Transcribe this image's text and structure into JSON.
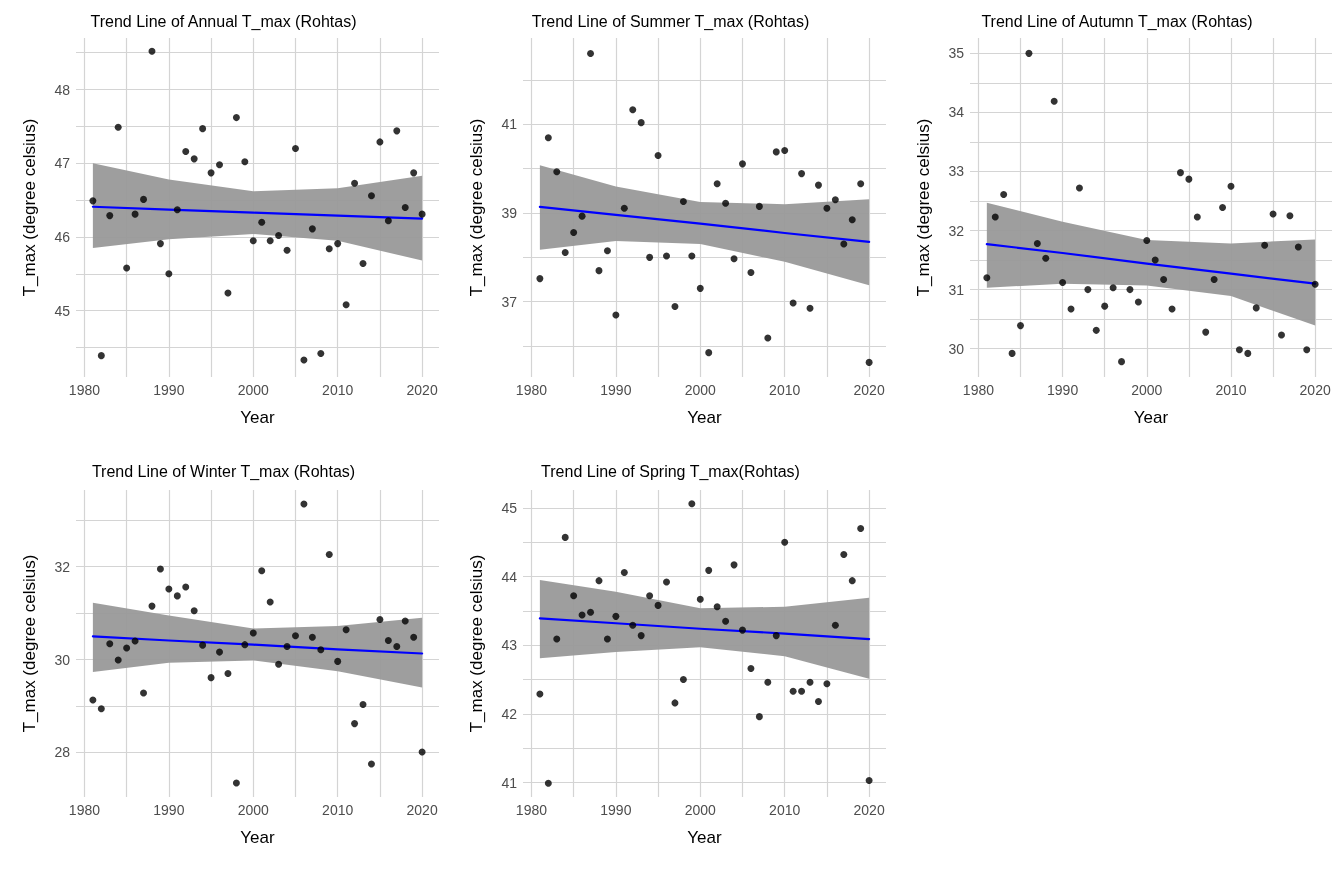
{
  "chart_data": [
    {
      "type": "scatter",
      "title": "Trend Line of Annual T_max (Rohtas)",
      "xlabel": "Year",
      "ylabel": "T_max (degree celsius)",
      "grid": true,
      "x": [
        1981,
        1982,
        1983,
        1984,
        1985,
        1986,
        1987,
        1988,
        1989,
        1990,
        1991,
        1992,
        1993,
        1994,
        1995,
        1996,
        1997,
        1998,
        1999,
        2000,
        2001,
        2002,
        2003,
        2004,
        2005,
        2006,
        2007,
        2008,
        2009,
        2010,
        2011,
        2012,
        2013,
        2014,
        2015,
        2016,
        2017,
        2018,
        2019,
        2020
      ],
      "xlim": [
        1979,
        2022
      ],
      "xticks": [
        1980,
        {
          "value": 1985,
          "label": null
        },
        1990,
        {
          "value": 1995,
          "label": null
        },
        2000,
        {
          "value": 2005,
          "label": null
        },
        2010,
        {
          "value": 2015,
          "label": null
        },
        2020
      ],
      "ylim": [
        44.1,
        48.7
      ],
      "yticks": [
        {
          "value": 44.5,
          "label": null
        },
        45,
        {
          "value": 45.5,
          "label": null
        },
        46,
        {
          "value": 46.5,
          "label": null
        },
        47,
        {
          "value": 47.5,
          "label": null
        },
        48,
        {
          "value": 48.5,
          "label": null
        }
      ],
      "series": [
        {
          "color": "#000000",
          "marker": "circle",
          "values": [
            46.49,
            44.39,
            46.29,
            47.49,
            45.58,
            46.31,
            46.51,
            48.52,
            45.91,
            45.5,
            46.37,
            47.16,
            47.06,
            47.47,
            46.87,
            46.98,
            45.24,
            47.62,
            47.02,
            45.95,
            46.2,
            45.95,
            46.02,
            45.82,
            47.2,
            44.33,
            46.11,
            44.42,
            45.84,
            45.91,
            45.08,
            46.73,
            45.64,
            46.56,
            47.29,
            46.22,
            47.44,
            46.4,
            46.87,
            46.31
          ]
        },
        {
          "type": "line",
          "color": "#0000ff",
          "marker": "none",
          "x": [
            1981,
            1990,
            2000,
            2010,
            2020
          ],
          "values": [
            46.41,
            46.37,
            46.33,
            46.29,
            46.25
          ],
          "lower": [
            45.85,
            45.97,
            46.04,
            45.95,
            45.68
          ],
          "upper": [
            47.0,
            46.78,
            46.62,
            46.66,
            46.83
          ]
        }
      ]
    },
    {
      "type": "scatter",
      "title": "Trend Line of Summer T_max (Rohtas)",
      "xlabel": "Year",
      "ylabel": "T_max (degree celsius)",
      "grid": true,
      "x": [
        1981,
        1982,
        1983,
        1984,
        1985,
        1986,
        1987,
        1988,
        1989,
        1990,
        1991,
        1992,
        1993,
        1994,
        1995,
        1996,
        1997,
        1998,
        1999,
        2000,
        2001,
        2002,
        2003,
        2004,
        2005,
        2006,
        2007,
        2008,
        2009,
        2010,
        2011,
        2012,
        2013,
        2014,
        2015,
        2016,
        2017,
        2018,
        2019,
        2020
      ],
      "xlim": [
        1979,
        2022
      ],
      "xticks": [
        1980,
        {
          "value": 1985,
          "label": null
        },
        1990,
        {
          "value": 1995,
          "label": null
        },
        2000,
        {
          "value": 2005,
          "label": null
        },
        2010,
        {
          "value": 2015,
          "label": null
        },
        2020
      ],
      "ylim": [
        35.3,
        42.95
      ],
      "yticks": [
        {
          "value": 36,
          "label": null
        },
        37,
        {
          "value": 38,
          "label": null
        },
        39,
        {
          "value": 40,
          "label": null
        },
        41,
        {
          "value": 42,
          "label": null
        }
      ],
      "series": [
        {
          "color": "#000000",
          "marker": "circle",
          "values": [
            37.52,
            40.7,
            39.93,
            38.11,
            38.56,
            38.93,
            42.6,
            37.7,
            38.15,
            36.7,
            39.11,
            41.33,
            41.04,
            38.0,
            40.3,
            38.03,
            36.89,
            39.26,
            38.03,
            37.3,
            35.85,
            39.66,
            39.22,
            37.97,
            40.11,
            37.66,
            39.15,
            36.18,
            40.38,
            40.41,
            36.97,
            39.89,
            36.85,
            39.63,
            39.11,
            39.3,
            38.3,
            38.85,
            39.66,
            35.63
          ]
        },
        {
          "type": "line",
          "color": "#0000ff",
          "marker": "none",
          "x": [
            1981,
            1990,
            2000,
            2010,
            2020
          ],
          "values": [
            39.14,
            38.96,
            38.76,
            38.55,
            38.35
          ],
          "lower": [
            38.17,
            38.37,
            38.3,
            37.9,
            37.37
          ],
          "upper": [
            40.08,
            39.6,
            39.25,
            39.2,
            39.31
          ]
        }
      ]
    },
    {
      "type": "scatter",
      "title": "Trend Line of Autumn T_max (Rohtas)",
      "xlabel": "Year",
      "ylabel": "T_max (degree celsius)",
      "grid": true,
      "x": [
        1981,
        1982,
        1983,
        1984,
        1985,
        1986,
        1987,
        1988,
        1989,
        1990,
        1991,
        1992,
        1993,
        1994,
        1995,
        1996,
        1997,
        1998,
        1999,
        2000,
        2001,
        2002,
        2003,
        2004,
        2005,
        2006,
        2007,
        2008,
        2009,
        2010,
        2011,
        2012,
        2013,
        2014,
        2015,
        2016,
        2017,
        2018,
        2019,
        2020
      ],
      "xlim": [
        1979,
        2022
      ],
      "xticks": [
        1980,
        {
          "value": 1985,
          "label": null
        },
        1990,
        {
          "value": 1995,
          "label": null
        },
        2000,
        {
          "value": 2005,
          "label": null
        },
        2010,
        {
          "value": 2015,
          "label": null
        },
        2020
      ],
      "ylim": [
        29.52,
        35.26
      ],
      "yticks": [
        30,
        {
          "value": 30.5,
          "label": null
        },
        31,
        {
          "value": 31.5,
          "label": null
        },
        32,
        {
          "value": 32.5,
          "label": null
        },
        33,
        {
          "value": 33.5,
          "label": null
        },
        34,
        {
          "value": 34.5,
          "label": null
        },
        35
      ],
      "series": [
        {
          "color": "#000000",
          "marker": "circle",
          "values": [
            31.2,
            32.23,
            32.61,
            29.92,
            30.39,
            35.0,
            31.78,
            31.53,
            34.19,
            31.12,
            30.67,
            32.72,
            31.0,
            30.31,
            30.72,
            31.03,
            29.78,
            31.0,
            30.79,
            31.83,
            31.5,
            31.17,
            30.67,
            32.98,
            32.87,
            32.23,
            30.28,
            31.17,
            32.39,
            32.75,
            29.98,
            29.92,
            30.69,
            31.75,
            32.28,
            30.23,
            32.25,
            31.72,
            29.98,
            31.09
          ]
        },
        {
          "type": "line",
          "color": "#0000ff",
          "marker": "none",
          "x": [
            1981,
            1990,
            2000,
            2010,
            2020
          ],
          "values": [
            31.77,
            31.62,
            31.44,
            31.27,
            31.1
          ],
          "lower": [
            31.03,
            31.1,
            31.07,
            30.89,
            30.39
          ],
          "upper": [
            32.47,
            32.15,
            31.84,
            31.78,
            31.85
          ]
        }
      ]
    },
    {
      "type": "scatter",
      "title": "Trend Line of Winter T_max (Rohtas)",
      "xlabel": "Year",
      "ylabel": "T_max (degree celsius)",
      "grid": true,
      "x": [
        1981,
        1982,
        1983,
        1984,
        1985,
        1986,
        1987,
        1988,
        1989,
        1990,
        1991,
        1992,
        1993,
        1994,
        1995,
        1996,
        1997,
        1998,
        1999,
        2000,
        2001,
        2002,
        2003,
        2004,
        2005,
        2006,
        2007,
        2008,
        2009,
        2010,
        2011,
        2012,
        2013,
        2014,
        2015,
        2016,
        2017,
        2018,
        2019,
        2020
      ],
      "xlim": [
        1979,
        2022
      ],
      "xticks": [
        1980,
        {
          "value": 1985,
          "label": null
        },
        1990,
        {
          "value": 1995,
          "label": null
        },
        2000,
        {
          "value": 2005,
          "label": null
        },
        2010,
        {
          "value": 2015,
          "label": null
        },
        2020
      ],
      "ylim": [
        27.04,
        33.65
      ],
      "yticks": [
        28,
        {
          "value": 29,
          "label": null
        },
        30,
        {
          "value": 31,
          "label": null
        },
        32,
        {
          "value": 33,
          "label": null
        }
      ],
      "series": [
        {
          "color": "#000000",
          "marker": "circle",
          "values": [
            29.13,
            28.94,
            30.34,
            29.99,
            30.25,
            30.4,
            29.28,
            31.15,
            31.95,
            31.52,
            31.37,
            31.56,
            31.05,
            30.31,
            29.61,
            30.16,
            29.7,
            27.34,
            30.32,
            30.57,
            31.91,
            31.24,
            29.9,
            30.28,
            30.51,
            33.35,
            30.48,
            30.21,
            32.26,
            29.96,
            30.64,
            28.62,
            29.03,
            27.75,
            30.86,
            30.41,
            30.28,
            30.83,
            30.48,
            28.01
          ]
        },
        {
          "type": "line",
          "color": "#0000ff",
          "marker": "none",
          "x": [
            1981,
            1990,
            2000,
            2010,
            2020
          ],
          "values": [
            30.5,
            30.41,
            30.32,
            30.22,
            30.13
          ],
          "lower": [
            29.73,
            29.93,
            29.98,
            29.75,
            29.4
          ],
          "upper": [
            31.22,
            30.95,
            30.67,
            30.72,
            30.9
          ]
        }
      ]
    },
    {
      "type": "scatter",
      "title": "Trend Line of Spring T_max(Rohtas)",
      "xlabel": "Year",
      "ylabel": "T_max (degree celsius)",
      "grid": true,
      "x": [
        1981,
        1982,
        1983,
        1984,
        1985,
        1986,
        1987,
        1988,
        1989,
        1990,
        1991,
        1992,
        1993,
        1994,
        1995,
        1996,
        1997,
        1998,
        1999,
        2000,
        2001,
        2002,
        2003,
        2004,
        2005,
        2006,
        2007,
        2008,
        2009,
        2010,
        2011,
        2012,
        2013,
        2014,
        2015,
        2016,
        2017,
        2018,
        2019,
        2020
      ],
      "xlim": [
        1979,
        2022
      ],
      "xticks": [
        1980,
        {
          "value": 1985,
          "label": null
        },
        1990,
        {
          "value": 1995,
          "label": null
        },
        2000,
        {
          "value": 2005,
          "label": null
        },
        2010,
        {
          "value": 2015,
          "label": null
        },
        2020
      ],
      "ylim": [
        40.79,
        45.26
      ],
      "yticks": [
        41,
        {
          "value": 41.5,
          "label": null
        },
        42,
        {
          "value": 42.5,
          "label": null
        },
        43,
        {
          "value": 43.5,
          "label": null
        },
        44,
        {
          "value": 44.5,
          "label": null
        },
        45
      ],
      "series": [
        {
          "color": "#000000",
          "marker": "circle",
          "values": [
            42.29,
            40.99,
            43.09,
            44.57,
            43.72,
            43.44,
            43.48,
            43.94,
            43.09,
            43.42,
            44.06,
            43.29,
            43.14,
            43.72,
            43.58,
            43.92,
            42.16,
            42.5,
            45.06,
            43.67,
            44.09,
            43.56,
            43.35,
            44.17,
            43.22,
            42.66,
            41.96,
            42.46,
            43.14,
            44.5,
            42.33,
            42.33,
            42.46,
            42.18,
            42.44,
            43.29,
            44.32,
            43.94,
            44.7,
            41.03
          ]
        },
        {
          "type": "line",
          "color": "#0000ff",
          "marker": "none",
          "x": [
            1981,
            1990,
            2000,
            2010,
            2020
          ],
          "values": [
            43.39,
            43.32,
            43.24,
            43.17,
            43.09
          ],
          "lower": [
            42.81,
            42.9,
            42.97,
            42.84,
            42.51
          ],
          "upper": [
            43.95,
            43.78,
            43.54,
            43.56,
            43.69
          ]
        }
      ]
    }
  ]
}
